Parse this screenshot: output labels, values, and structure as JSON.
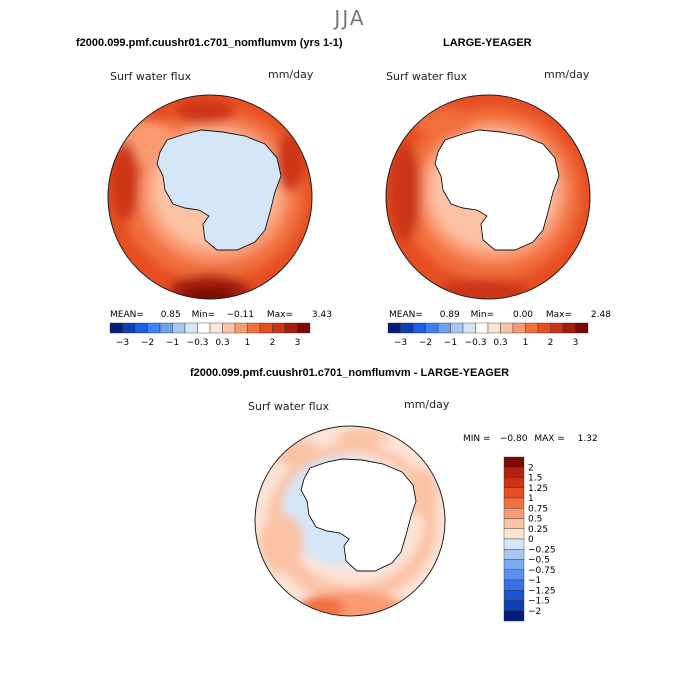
{
  "season_title": "JJA",
  "chart_data": [
    {
      "type": "heatmap",
      "title": "f2000.099.pmf.cuushr01.c701_nomflumvm (yrs 1-1)",
      "field": "Surf water flux",
      "units": "mm/day",
      "projection": "south polar stereographic",
      "stats": {
        "mean_label": "MEAN=",
        "mean": "0.85",
        "min_label": "Min=",
        "min": "−0.11",
        "max_label": "Max=",
        "max": "3.43"
      },
      "colorbar_levels": [
        "−3",
        "−2",
        "−1",
        "−0.3",
        "0.3",
        "1",
        "2",
        "3"
      ]
    },
    {
      "type": "heatmap",
      "title": "LARGE-YEAGER",
      "field": "Surf water flux",
      "units": "mm/day",
      "projection": "south polar stereographic",
      "stats": {
        "mean_label": "MEAN=",
        "mean": "0.89",
        "min_label": "Min=",
        "min": "0.00",
        "max_label": "Max=",
        "max": "2.48"
      },
      "colorbar_levels": [
        "−3",
        "−2",
        "−1",
        "−0.3",
        "0.3",
        "1",
        "2",
        "3"
      ]
    },
    {
      "type": "heatmap",
      "title": "f2000.099.pmf.cuushr01.c701_nomflumvm - LARGE-YEAGER",
      "field": "Surf water flux",
      "units": "mm/day",
      "projection": "south polar stereographic",
      "stats": {
        "min_label": "MIN =",
        "min": "−0.80",
        "max_label": "MAX =",
        "max": "1.32"
      },
      "colorbar_levels": [
        "2",
        "1.5",
        "1.25",
        "1",
        "0.75",
        "0.5",
        "0.25",
        "0",
        "−0.25",
        "−0.5",
        "−0.75",
        "−1",
        "−1.25",
        "−1.5",
        "−2"
      ]
    }
  ],
  "palette": {
    "blues": [
      "#061a78",
      "#0b3fb8",
      "#1a5ee8",
      "#3f80f5",
      "#6fa0f0",
      "#a6c8f2",
      "#d4e6f8"
    ],
    "reds": [
      "#fbe3d6",
      "#fbc3a6",
      "#fa9a72",
      "#f2703e",
      "#e64e22",
      "#cc3417",
      "#a51d0d",
      "#7a0a04"
    ],
    "diff": [
      "#7a0a04",
      "#b3220f",
      "#cc3417",
      "#e64e22",
      "#f2703e",
      "#fa9a72",
      "#fbc3a6",
      "#fbe3d6",
      "#d4e6f8",
      "#a6c8f2",
      "#7eaaf2",
      "#5b8ff0",
      "#3a72e6",
      "#1a54d3",
      "#0b3fb8",
      "#061a78"
    ]
  }
}
